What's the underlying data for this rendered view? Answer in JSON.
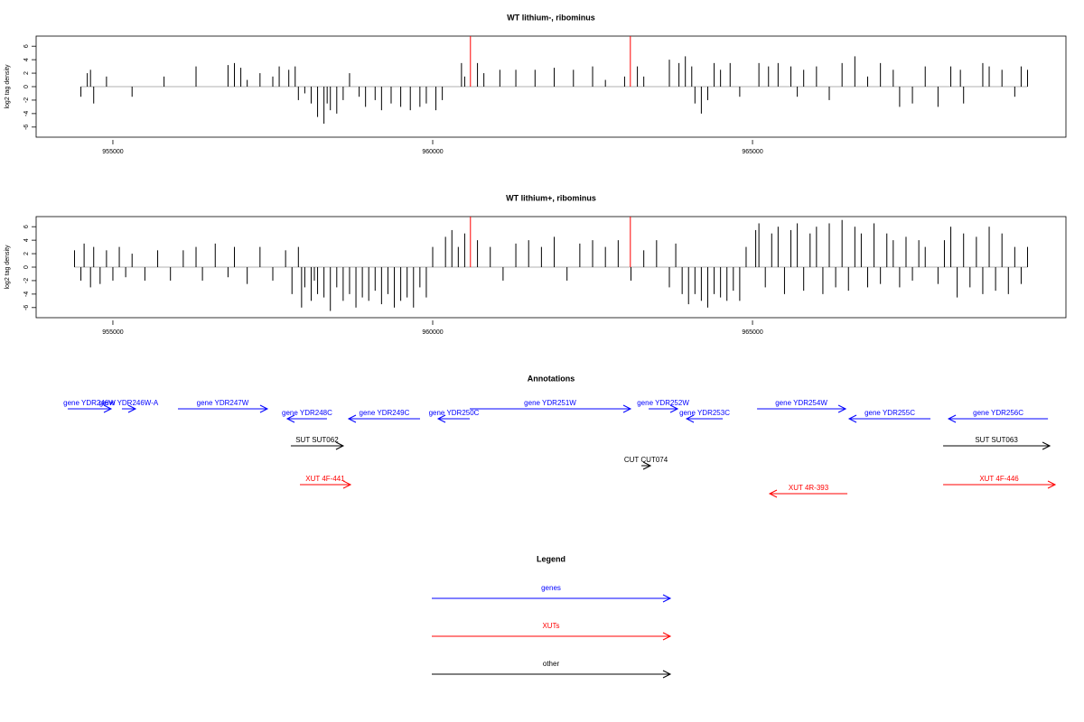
{
  "chart_data": [
    {
      "type": "bar",
      "title": "WT lithium-, ribominus",
      "ylabel": "log2 tag density",
      "color": "#000000",
      "xlim": [
        953800,
        969900
      ],
      "xticks": [
        955000,
        960000,
        965000
      ],
      "ylim": [
        -7.5,
        7.5
      ],
      "yticks": [
        -6,
        -4,
        -2,
        0,
        2,
        4,
        6
      ],
      "markers": [
        960590,
        963090
      ],
      "marker_color": "#ff0000",
      "x": [
        954500,
        954600,
        954650,
        954700,
        954900,
        955300,
        955800,
        956300,
        956800,
        956900,
        957000,
        957100,
        957300,
        957500,
        957600,
        957750,
        957850,
        957900,
        958000,
        958100,
        958200,
        958300,
        958350,
        958400,
        958500,
        958600,
        958700,
        958850,
        958950,
        959100,
        959200,
        959350,
        959500,
        959650,
        959800,
        959900,
        960050,
        960150,
        960450,
        960500,
        960700,
        960800,
        961050,
        961300,
        961600,
        961900,
        962200,
        962500,
        962700,
        963000,
        963200,
        963300,
        963700,
        963850,
        963950,
        964050,
        964100,
        964200,
        964300,
        964400,
        964500,
        964650,
        964800,
        965100,
        965250,
        965400,
        965600,
        965700,
        965800,
        966000,
        966200,
        966400,
        966600,
        966800,
        967000,
        967200,
        967300,
        967500,
        967700,
        967900,
        968100,
        968250,
        968300,
        968600,
        968700,
        968900,
        969100,
        969200,
        969300
      ],
      "values": [
        -1.5,
        2,
        2.5,
        -2.5,
        1.5,
        -1.5,
        1.5,
        3,
        3.2,
        3.5,
        2.8,
        1,
        2,
        1.5,
        3,
        2.5,
        3,
        -2,
        -1,
        -2.5,
        -4.5,
        -5.5,
        -2.5,
        -3.5,
        -4,
        -2,
        2,
        -1.5,
        -3,
        -2,
        -3.5,
        -2.5,
        -3,
        -3.5,
        -3,
        -2.5,
        -3.5,
        -2,
        3.5,
        1.5,
        3.5,
        2,
        2.5,
        2.5,
        2.5,
        2.8,
        2.5,
        3,
        1,
        1.5,
        3,
        1.5,
        4,
        3.5,
        4.5,
        3,
        -2.5,
        -4,
        -2,
        3.5,
        2.5,
        3.5,
        -1.5,
        3.5,
        3,
        3.5,
        3,
        -1.5,
        2.5,
        3,
        -2,
        3.5,
        4.5,
        1.5,
        3.5,
        2.5,
        -3,
        -2.5,
        3,
        -3,
        3,
        2.5,
        -2.5,
        3.5,
        3,
        2.5,
        -1.5,
        3,
        2.5
      ]
    },
    {
      "type": "bar",
      "title": "WT lithium+, ribominus",
      "ylabel": "log2 tag density",
      "color": "#000000",
      "xlim": [
        953800,
        969900
      ],
      "xticks": [
        955000,
        960000,
        965000
      ],
      "ylim": [
        -7.5,
        7.5
      ],
      "yticks": [
        -6,
        -4,
        -2,
        0,
        2,
        4,
        6
      ],
      "markers": [
        960590,
        963090
      ],
      "marker_color": "#ff0000",
      "x": [
        954400,
        954500,
        954550,
        954650,
        954700,
        954800,
        954900,
        955000,
        955100,
        955200,
        955300,
        955500,
        955700,
        955900,
        956100,
        956300,
        956400,
        956600,
        956800,
        956900,
        957100,
        957300,
        957500,
        957700,
        957800,
        957900,
        957950,
        958000,
        958100,
        958150,
        958200,
        958300,
        958400,
        958500,
        958600,
        958700,
        958800,
        958900,
        959000,
        959100,
        959200,
        959300,
        959400,
        959500,
        959600,
        959700,
        959800,
        959900,
        960000,
        960200,
        960300,
        960400,
        960500,
        960700,
        960900,
        961100,
        961300,
        961500,
        961700,
        961900,
        962100,
        962300,
        962500,
        962700,
        962900,
        963100,
        963300,
        963500,
        963700,
        963800,
        963900,
        964000,
        964100,
        964200,
        964300,
        964400,
        964500,
        964600,
        964700,
        964800,
        964900,
        965050,
        965100,
        965200,
        965300,
        965400,
        965500,
        965600,
        965700,
        965800,
        965900,
        966000,
        966100,
        966200,
        966300,
        966400,
        966500,
        966600,
        966700,
        966800,
        966900,
        967000,
        967100,
        967200,
        967300,
        967400,
        967500,
        967600,
        967700,
        967900,
        968000,
        968100,
        968200,
        968300,
        968400,
        968500,
        968600,
        968700,
        968800,
        968900,
        969000,
        969100,
        969200,
        969300
      ],
      "values": [
        2.5,
        -2,
        3.5,
        -3,
        3,
        -2.5,
        2.5,
        -2,
        3,
        -1.5,
        2,
        -2,
        2.5,
        -2,
        2.5,
        3,
        -2,
        3.5,
        -1.5,
        3,
        -2.5,
        3,
        -2,
        2.5,
        -4,
        3,
        -6,
        -3,
        -5,
        -2,
        -4,
        -4.5,
        -6.5,
        -3,
        -5,
        -4,
        -6,
        -4.5,
        -5,
        -3.5,
        -5.5,
        -4,
        -6,
        -5,
        -4.5,
        -6,
        -3,
        -4.5,
        3,
        4.5,
        5.5,
        3,
        5,
        4,
        3,
        -2,
        3.5,
        4,
        3,
        4.5,
        -2,
        3.5,
        4,
        3,
        4,
        -2,
        2.5,
        4,
        -3,
        3.5,
        -4,
        -5.5,
        -4,
        -5,
        -6,
        -4,
        -4.5,
        -5,
        -3.5,
        -5,
        3,
        5.5,
        6.5,
        -3,
        5,
        6,
        -4,
        5.5,
        6.5,
        -3.5,
        5,
        6,
        -4,
        6.5,
        -3,
        7,
        -3.5,
        6,
        5,
        -3,
        6.5,
        -2.5,
        5,
        4,
        -3,
        4.5,
        -2,
        4,
        3,
        -2.5,
        4,
        6,
        -4.5,
        5,
        -3,
        4.5,
        -4,
        6,
        -3.5,
        5,
        -4,
        3,
        -2.5,
        3
      ]
    }
  ],
  "annotations": {
    "title": "Annotations",
    "features": [
      {
        "label": "gene YDR246W",
        "type": "gene",
        "strand": "+",
        "start": 954294,
        "end": 954972
      },
      {
        "label": "gene YDR246W-A",
        "type": "gene",
        "strand": "+",
        "start": 955141,
        "end": 955353
      },
      {
        "label": "gene YDR247W",
        "type": "gene",
        "strand": "+",
        "start": 956017,
        "end": 957415
      },
      {
        "label": "gene YDR248C",
        "type": "gene",
        "strand": "-",
        "start": 957726,
        "end": 958347
      },
      {
        "label": "gene YDR249C",
        "type": "gene",
        "strand": "-",
        "start": 958686,
        "end": 959802
      },
      {
        "label": "gene YDR250C",
        "type": "gene",
        "strand": "-",
        "start": 960085,
        "end": 960579
      },
      {
        "label": "gene YDR251W",
        "type": "gene",
        "strand": "+",
        "start": 960579,
        "end": 963093
      },
      {
        "label": "gene YDR252W",
        "type": "gene",
        "strand": "+",
        "start": 963376,
        "end": 963828
      },
      {
        "label": "gene YDR253C",
        "type": "gene",
        "strand": "-",
        "start": 963969,
        "end": 964534
      },
      {
        "label": "gene YDR254W",
        "type": "gene",
        "strand": "+",
        "start": 965071,
        "end": 966455
      },
      {
        "label": "gene YDR255C",
        "type": "gene",
        "strand": "-",
        "start": 966511,
        "end": 967782
      },
      {
        "label": "gene YDR256C",
        "type": "gene",
        "strand": "-",
        "start": 968065,
        "end": 969619
      },
      {
        "label": "SUT SUT062",
        "type": "other",
        "strand": "+",
        "start": 957782,
        "end": 958601
      },
      {
        "label": "SUT SUT063",
        "type": "other",
        "strand": "+",
        "start": 967980,
        "end": 969647
      },
      {
        "label": "CUT CUT074",
        "type": "cut",
        "strand": "+",
        "start": 963263,
        "end": 963404
      },
      {
        "label": "XUT 4F-441",
        "type": "xut",
        "strand": "+",
        "start": 957924,
        "end": 958715
      },
      {
        "label": "XUT 4R-393",
        "type": "xut",
        "strand": "-",
        "start": 965268,
        "end": 966483
      },
      {
        "label": "XUT 4F-446",
        "type": "xut",
        "strand": "+",
        "start": 967980,
        "end": 969731
      }
    ],
    "colors": {
      "gene": "#0000ff",
      "xut": "#ff0000",
      "other": "#000000",
      "cut": "#000000"
    }
  },
  "legend": {
    "title": "Legend",
    "entries": [
      {
        "label": "genes",
        "color": "#0000ff"
      },
      {
        "label": "XUTs",
        "color": "#ff0000"
      },
      {
        "label": "other",
        "color": "#000000"
      }
    ]
  }
}
